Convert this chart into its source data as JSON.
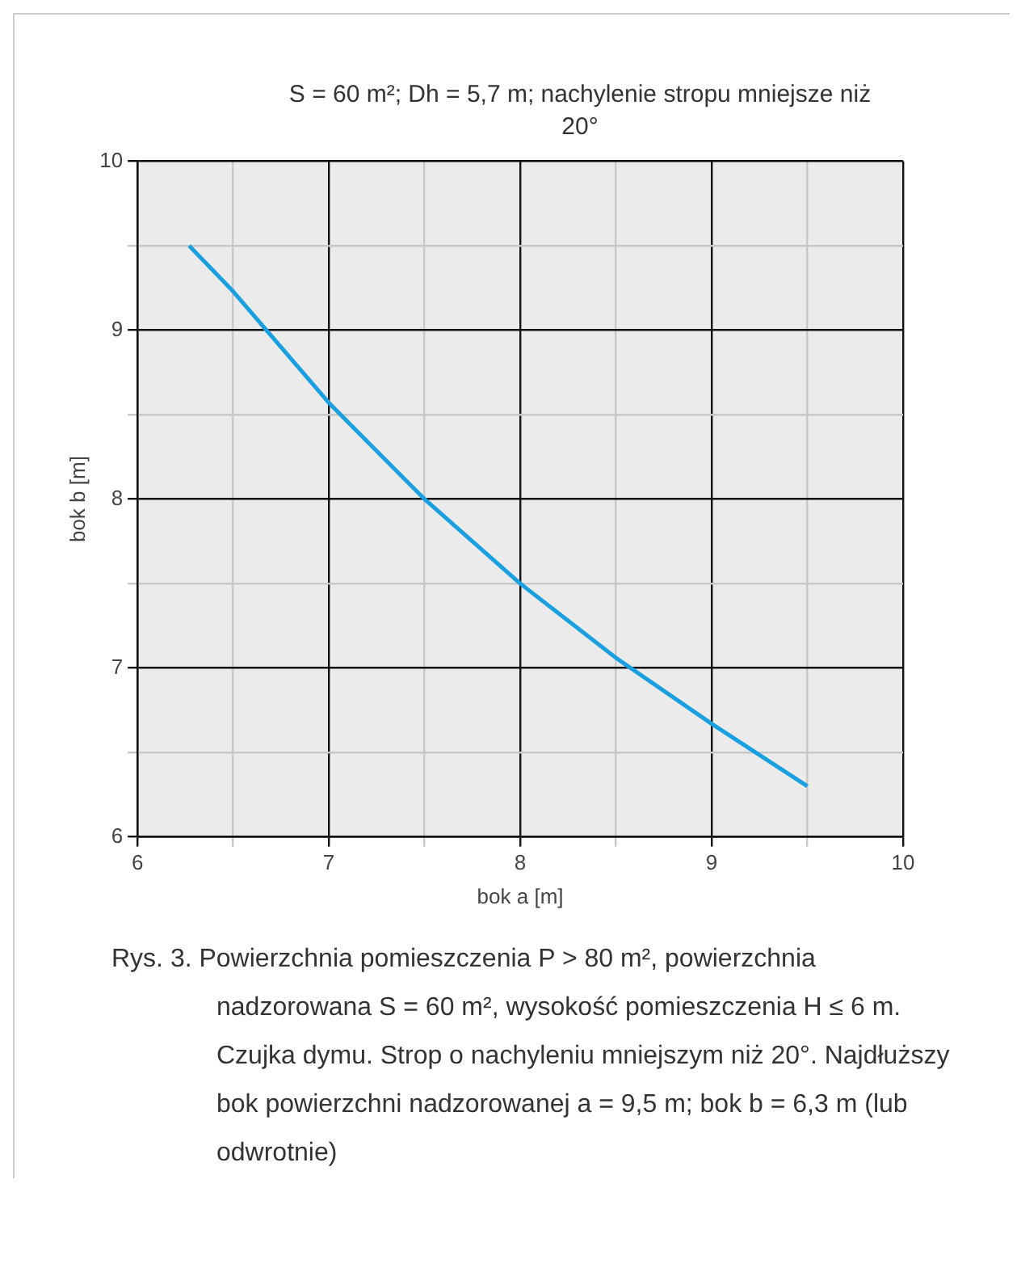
{
  "chart_data": {
    "type": "line",
    "title": "S = 60 m²; Dh = 5,7 m; nachylenie stropu mniejsze niż 20°",
    "xlabel": "bok a [m]",
    "ylabel": "bok b [m]",
    "x": [
      6.27,
      6.5,
      7,
      7.5,
      8,
      8.5,
      9,
      9.5
    ],
    "series": [
      {
        "color": "#1a9fe0",
        "values": [
          9.5,
          9.23,
          8.57,
          8.0,
          7.5,
          7.06,
          6.67,
          6.3
        ]
      }
    ],
    "xlim": [
      6,
      10
    ],
    "ylim": [
      6,
      10
    ],
    "xticks": [
      6,
      {
        "value": 6.5,
        "label": null
      },
      7,
      {
        "value": 7.5,
        "label": null
      },
      8,
      {
        "value": 8.5,
        "label": null
      },
      9,
      {
        "value": 9.5,
        "label": null
      },
      10
    ],
    "yticks": [
      6,
      {
        "value": 6.5,
        "label": null
      },
      7,
      {
        "value": 7.5,
        "label": null
      },
      8,
      {
        "value": 8.5,
        "label": null
      },
      9,
      {
        "value": 9.5,
        "label": null
      },
      10
    ],
    "grid": true,
    "marker": "none",
    "line_style": "solid",
    "annotations": [
      "Rys. 3. Powierzchnia pomieszczenia P > 80 m², powierzchnia nadzorowana S = 60 m², wysokość pomieszczenia H ≤ 6 m. Czujka dymu. Strop o nachyleniu mniejszym niż 20°. Najdłuższy bok powierzchni nadzorowanej a = 9,5 m; bok b = 6,3 m (lub odwrotnie)"
    ]
  }
}
